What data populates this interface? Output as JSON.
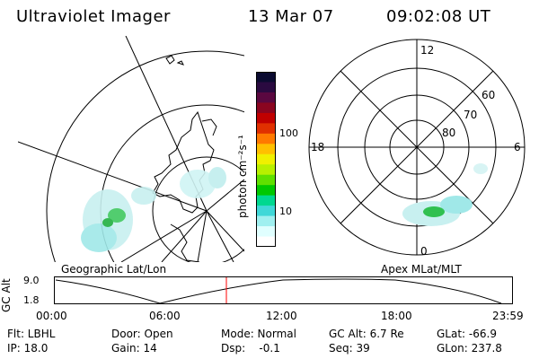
{
  "header": {
    "title": "Ultraviolet Imager",
    "date": "13 Mar 07",
    "time": "09:02:08 UT"
  },
  "geo_panel": {
    "caption": "Geographic Lat/Lon"
  },
  "apex_panel": {
    "caption": "Apex MLat/MLT",
    "mlt_labels": {
      "top": "12",
      "right": "6",
      "bottom": "0",
      "left": "18"
    },
    "lat_labels": [
      "60",
      "70",
      "80"
    ]
  },
  "colorbar": {
    "unit_label": "photon cm⁻²s⁻¹",
    "tick_labels": [
      "100",
      "10"
    ],
    "colors": [
      "#0b0b30",
      "#2a0a40",
      "#5a0840",
      "#8a0520",
      "#c00000",
      "#e03000",
      "#ff7a00",
      "#ffc000",
      "#f0f000",
      "#b8f000",
      "#60e000",
      "#00c800",
      "#00d890",
      "#40d8d8",
      "#a0f0f0",
      "#e0ffff",
      "#ffffff"
    ]
  },
  "altitude_plot": {
    "ylabel": "GC Alt",
    "y_ticks": [
      "9.0",
      "1.8"
    ],
    "x_ticks": [
      "00:00",
      "06:00",
      "12:00",
      "18:00",
      "23:59"
    ],
    "marker_color": "#ff0000"
  },
  "status": {
    "flt": "Flt: LBHL",
    "ip": "IP: 18.0",
    "door": "Door: Open",
    "gain": "Gain: 14",
    "mode": "Mode: Normal",
    "dsp": "Dsp:    -0.1",
    "gcalt": "GC Alt: 6.7 Re",
    "seq": "Seq: 39",
    "glat": "GLat: -66.9",
    "glon": "GLon: 237.8"
  }
}
